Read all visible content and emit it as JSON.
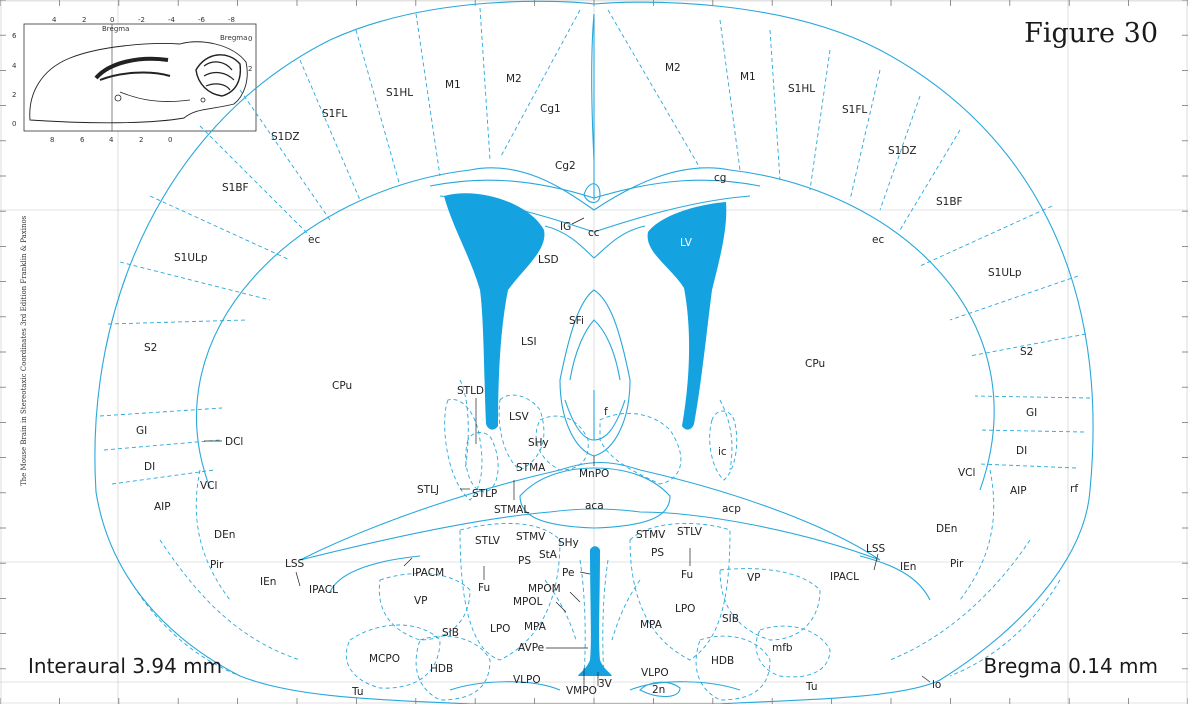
{
  "figure": {
    "prefix": "Figure",
    "number": "30"
  },
  "coordinates": {
    "interaural": "Interaural 3.94 mm",
    "bregma": "Bregma 0.14 mm"
  },
  "credit": "The Mouse Brain in Stereotaxic Coordinates 3rd Edition  Franklin & Paxinos",
  "inset": {
    "top_ticks": [
      "4",
      "2",
      "0",
      "-2",
      "-4",
      "-6",
      "-8"
    ],
    "left_ticks": [
      "6",
      "4",
      "2",
      "0"
    ],
    "bottom_ticks": [
      "8",
      "6",
      "4",
      "2",
      "0"
    ],
    "right_ticks": [
      "0",
      "2"
    ],
    "bregma_label": "Bregma"
  },
  "regions": {
    "left_cortex": [
      "M2",
      "M1",
      "S1HL",
      "S1FL",
      "S1DZ",
      "S1BF",
      "S1ULp",
      "S2",
      "GI",
      "DI",
      "AIP",
      "DEn",
      "Pir",
      "IEn",
      "LSS",
      "IPACL"
    ],
    "right_cortex": [
      "M2",
      "M1",
      "S1HL",
      "S1FL",
      "S1DZ",
      "S1BF",
      "S1ULp",
      "S2",
      "GI",
      "DI",
      "AIP",
      "DEn",
      "Pir",
      "IEn",
      "LSS",
      "IPACL"
    ],
    "midline": [
      "Cg1",
      "Cg2",
      "cg",
      "IG",
      "cc",
      "ec",
      "ec"
    ],
    "septum": [
      "LSD",
      "LSI",
      "SFi",
      "LSV",
      "f",
      "SHy",
      "STMA",
      "MnPO",
      "aca",
      "acp"
    ],
    "striatum": [
      "CPu",
      "CPu",
      "LV",
      "STLD",
      "DCl",
      "VCl",
      "VCl",
      "STLJ",
      "STLP",
      "STMAL",
      "ic",
      "rf"
    ],
    "ventral": [
      "STLV",
      "STMV",
      "StA",
      "SHy",
      "PS",
      "STMV",
      "STLV",
      "PS",
      "Pe",
      "MPOM",
      "MPOL",
      "Fu",
      "Fu",
      "IPACM",
      "VP",
      "VP",
      "SIB",
      "LPO",
      "MPA",
      "LPO",
      "MPA",
      "SIB",
      "AVPe",
      "MCPO",
      "HDB",
      "HDB",
      "mfb",
      "VLPO",
      "VLPO",
      "VMPO",
      "3V",
      "2n",
      "Tu",
      "Tu",
      "lo"
    ]
  },
  "colors": {
    "line": "#29a8dc",
    "ventricle": "#14a3e0",
    "grid": "#c8c8c8"
  }
}
